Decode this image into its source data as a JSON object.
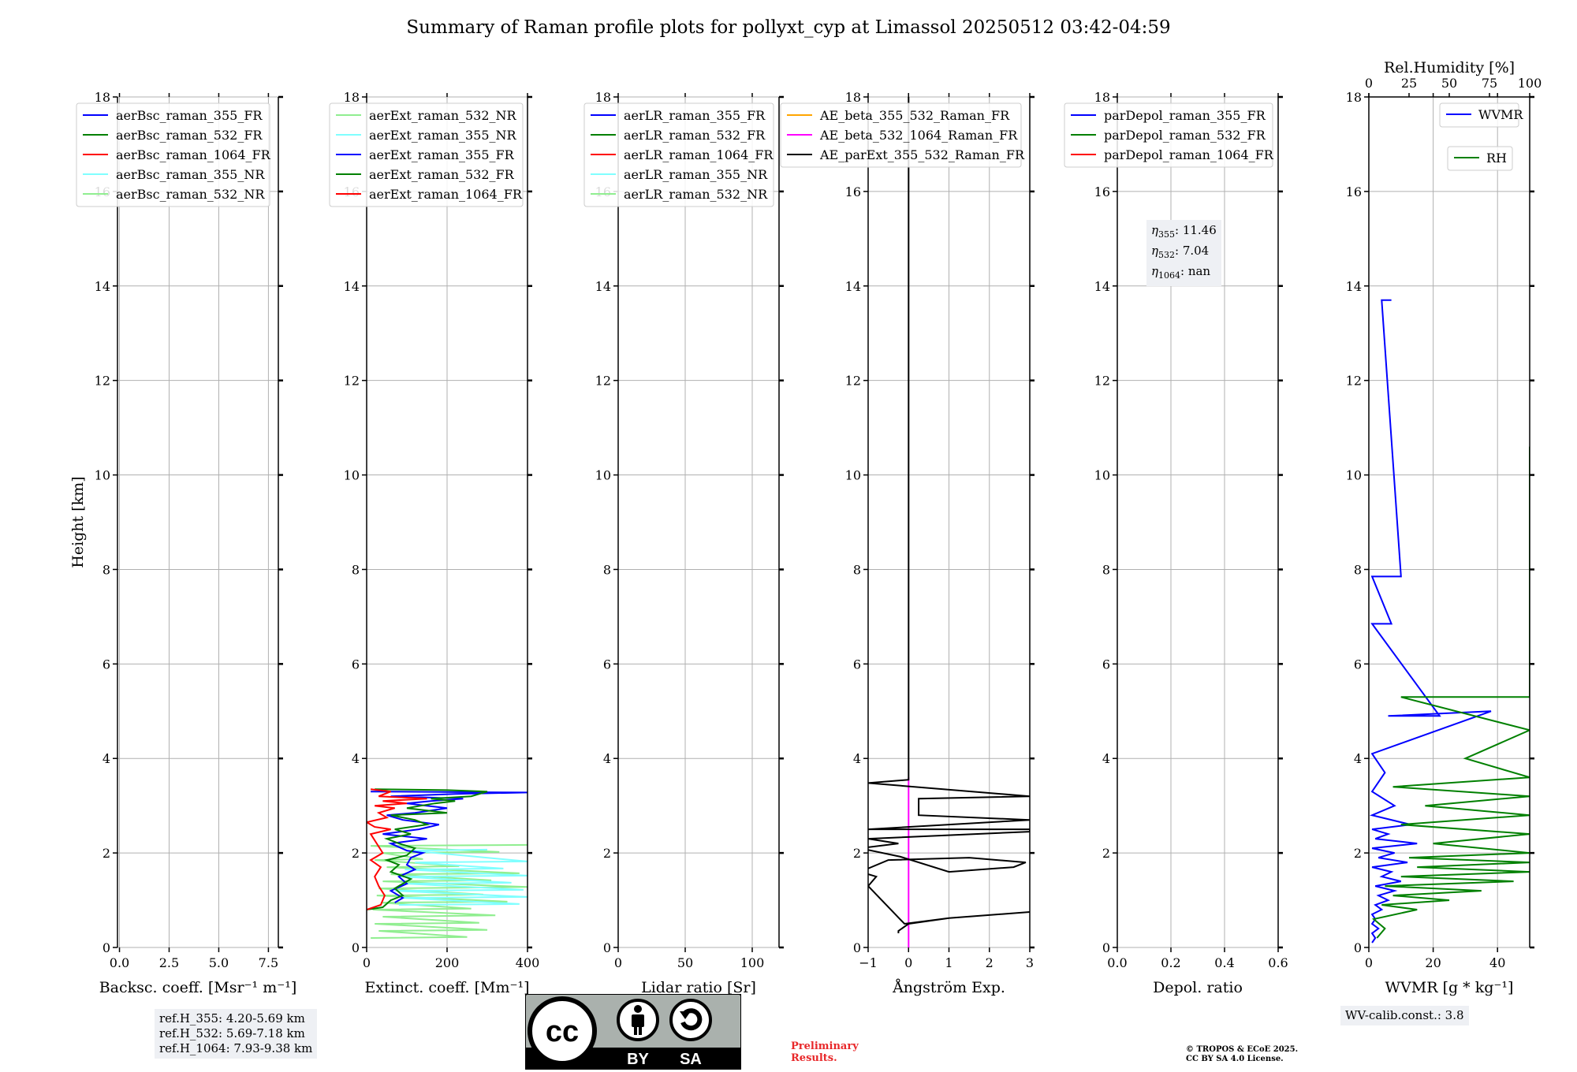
{
  "title": "Summary of Raman profile plots for pollyxt_cyp at Limassol 20250512 03:42-04:59",
  "colors": {
    "blue": "#0000ff",
    "green": "#008000",
    "red": "#ff0000",
    "cyan": "#80ffff",
    "lightgreen": "#90ee90",
    "orange": "#ffa500",
    "magenta": "#ff00ff",
    "black": "#000000",
    "grid": "#b0b0b0",
    "prelim": "#e8282a"
  },
  "chart_data": [
    {
      "type": "line",
      "name": "backscatter",
      "xlabel": "Backsc. coeff. [Msr⁻¹ m⁻¹]",
      "ylabel": "Height [km]",
      "xlim": [
        -0.1,
        8.0
      ],
      "ylim": [
        0,
        18
      ],
      "xticks": [
        0.0,
        2.5,
        5.0,
        7.5
      ],
      "xtick_labels": [
        "0.0",
        "2.5",
        "5.0",
        "7.5"
      ],
      "yticks": [
        0,
        2,
        4,
        6,
        8,
        10,
        12,
        14,
        16,
        18
      ],
      "grid": true,
      "legend": "top-left",
      "series": [
        {
          "name": "aerBsc_raman_355_FR",
          "color": "blue",
          "x": [],
          "y": []
        },
        {
          "name": "aerBsc_raman_532_FR",
          "color": "green",
          "x": [],
          "y": []
        },
        {
          "name": "aerBsc_raman_1064_FR",
          "color": "red",
          "x": [],
          "y": []
        },
        {
          "name": "aerBsc_raman_355_NR",
          "color": "cyan",
          "x": [],
          "y": []
        },
        {
          "name": "aerBsc_raman_532_NR",
          "color": "lightgreen",
          "x": [],
          "y": []
        }
      ]
    },
    {
      "type": "line",
      "name": "extinction",
      "xlabel": "Extinct. coeff. [Mm⁻¹]",
      "xlim": [
        0,
        400
      ],
      "ylim": [
        0,
        18
      ],
      "xticks": [
        0,
        200,
        400
      ],
      "xtick_labels": [
        "0",
        "200",
        "400"
      ],
      "yticks": [
        0,
        2,
        4,
        6,
        8,
        10,
        12,
        14,
        16,
        18
      ],
      "grid": true,
      "legend": "top-left",
      "series": [
        {
          "name": "aerExt_raman_532_NR",
          "color": "lightgreen",
          "x": [
            10,
            250,
            30,
            300,
            20,
            280,
            40,
            320,
            15,
            260,
            35,
            350,
            25,
            290,
            30,
            400,
            40,
            310,
            60,
            380,
            50,
            230,
            20,
            140,
            40,
            330,
            10,
            400
          ],
          "y": [
            0.2,
            0.22,
            0.35,
            0.37,
            0.5,
            0.52,
            0.65,
            0.68,
            0.8,
            0.82,
            0.95,
            0.97,
            1.1,
            1.12,
            1.25,
            1.28,
            1.4,
            1.42,
            1.55,
            1.57,
            1.7,
            1.72,
            1.85,
            1.87,
            2.0,
            2.02,
            2.15,
            2.17
          ]
        },
        {
          "name": "aerExt_raman_355_NR",
          "color": "cyan",
          "x": [
            80,
            380,
            90,
            400,
            70,
            390,
            100,
            360,
            85,
            400,
            95,
            340,
            120,
            400,
            110,
            300
          ],
          "y": [
            0.9,
            0.92,
            1.05,
            1.07,
            1.2,
            1.22,
            1.35,
            1.37,
            1.5,
            1.52,
            1.65,
            1.67,
            1.8,
            1.82,
            2.05,
            2.07
          ]
        },
        {
          "name": "aerExt_raman_355_FR",
          "color": "blue",
          "x": [
            70,
            90,
            60,
            100,
            80,
            120,
            100,
            110,
            140,
            100,
            60,
            150,
            40,
            130,
            180,
            90,
            50,
            120,
            200,
            100,
            160,
            240,
            60,
            220,
            400,
            10
          ],
          "y": [
            0.95,
            1.05,
            1.2,
            1.35,
            1.5,
            1.65,
            1.75,
            1.9,
            2.0,
            2.05,
            2.2,
            2.3,
            2.4,
            2.5,
            2.6,
            2.7,
            2.8,
            2.85,
            2.95,
            3.05,
            3.1,
            3.15,
            3.2,
            3.25,
            3.28,
            3.3
          ]
        },
        {
          "name": "aerExt_raman_532_FR",
          "color": "green",
          "x": [
            0,
            40,
            60,
            90,
            70,
            110,
            60,
            80,
            50,
            100,
            120,
            80,
            50,
            110,
            70,
            150,
            120,
            60,
            200,
            100,
            170,
            220,
            160,
            260,
            300,
            200,
            20
          ],
          "y": [
            0.8,
            0.85,
            1.0,
            1.1,
            1.25,
            1.45,
            1.6,
            1.75,
            1.85,
            1.95,
            2.1,
            2.2,
            2.3,
            2.4,
            2.5,
            2.6,
            2.7,
            2.8,
            2.85,
            2.95,
            3.05,
            3.1,
            3.15,
            3.2,
            3.3,
            3.33,
            3.35
          ]
        },
        {
          "name": "aerExt_raman_1064_FR",
          "color": "red",
          "x": [
            0,
            35,
            45,
            30,
            20,
            35,
            10,
            40,
            25,
            10,
            60,
            20,
            0,
            50,
            30,
            70,
            20,
            100,
            40,
            150,
            30,
            60,
            10
          ],
          "y": [
            0.8,
            0.9,
            1.1,
            1.3,
            1.5,
            1.7,
            1.85,
            2.0,
            2.2,
            2.4,
            2.5,
            2.55,
            2.65,
            2.75,
            2.85,
            2.95,
            3.0,
            3.05,
            3.1,
            3.15,
            3.2,
            3.3,
            3.35
          ]
        }
      ]
    },
    {
      "type": "line",
      "name": "lidar-ratio",
      "xlabel": "Lidar ratio [Sr]",
      "xlim": [
        0,
        120
      ],
      "ylim": [
        0,
        18
      ],
      "xticks": [
        0,
        50,
        100
      ],
      "xtick_labels": [
        "0",
        "50",
        "100"
      ],
      "yticks": [
        0,
        2,
        4,
        6,
        8,
        10,
        12,
        14,
        16,
        18
      ],
      "grid": true,
      "legend": "top-left",
      "series": [
        {
          "name": "aerLR_raman_355_FR",
          "color": "blue",
          "x": [],
          "y": []
        },
        {
          "name": "aerLR_raman_532_FR",
          "color": "green",
          "x": [],
          "y": []
        },
        {
          "name": "aerLR_raman_1064_FR",
          "color": "red",
          "x": [],
          "y": []
        },
        {
          "name": "aerLR_raman_355_NR",
          "color": "cyan",
          "x": [],
          "y": []
        },
        {
          "name": "aerLR_raman_532_NR",
          "color": "lightgreen",
          "x": [],
          "y": []
        }
      ]
    },
    {
      "type": "line",
      "name": "angstrom",
      "xlabel": "Ångström Exp.",
      "xlim": [
        -1,
        3
      ],
      "ylim": [
        0,
        18
      ],
      "xticks": [
        -1,
        0,
        1,
        2,
        3
      ],
      "xtick_labels": [
        "−1",
        "0",
        "1",
        "2",
        "3"
      ],
      "yticks": [
        0,
        2,
        4,
        6,
        8,
        10,
        12,
        14,
        16,
        18
      ],
      "grid": true,
      "legend": "top-left",
      "series": [
        {
          "name": "AE_beta_355_532_Raman_FR",
          "color": "orange",
          "x": [],
          "y": []
        },
        {
          "name": "AE_beta_532_1064_Raman_FR",
          "color": "magenta",
          "x": [
            0,
            0
          ],
          "y": [
            0.0,
            3.6
          ]
        },
        {
          "name": "AE_parExt_355_532_Raman_FR",
          "color": "black",
          "x": [
            -0.25,
            -0.25,
            0.0,
            1.0,
            3.0,
            3.0,
            1.0,
            -0.1,
            -1.0,
            -0.8,
            -1.2,
            -0.5,
            1.5,
            2.9,
            2.6,
            1.0,
            -0.2,
            -1.2,
            -0.25,
            -1.0,
            3.0,
            3.0,
            -1.0,
            3.0,
            0.25,
            0.25,
            3.0,
            -1.0,
            0.0,
            0.0
          ],
          "y": [
            0.3,
            0.35,
            0.5,
            0.62,
            0.75,
            0.75,
            0.62,
            0.5,
            1.3,
            1.5,
            1.6,
            1.85,
            1.9,
            1.8,
            1.7,
            1.6,
            1.92,
            2.1,
            2.2,
            2.3,
            2.45,
            2.5,
            2.5,
            2.7,
            2.8,
            3.15,
            3.2,
            3.48,
            3.55,
            18.0
          ]
        }
      ]
    },
    {
      "type": "line",
      "name": "depolarization",
      "xlabel": "Depol. ratio",
      "xlim": [
        0.0,
        0.6
      ],
      "ylim": [
        0,
        18
      ],
      "xticks": [
        0.0,
        0.2,
        0.4,
        0.6
      ],
      "xtick_labels": [
        "0.0",
        "0.2",
        "0.4",
        "0.6"
      ],
      "yticks": [
        0,
        2,
        4,
        6,
        8,
        10,
        12,
        14,
        16,
        18
      ],
      "grid": true,
      "legend": "top-left",
      "series": [
        {
          "name": "parDepol_raman_355_FR",
          "color": "blue",
          "x": [],
          "y": []
        },
        {
          "name": "parDepol_raman_532_FR",
          "color": "green",
          "x": [],
          "y": []
        },
        {
          "name": "parDepol_raman_1064_FR",
          "color": "red",
          "x": [],
          "y": []
        }
      ]
    },
    {
      "type": "line",
      "name": "water-vapor",
      "xlabel": "WVMR [g * kg⁻¹]",
      "xlabel_top": "Rel.Humidity [%]",
      "xlim": [
        0,
        50
      ],
      "xlim_top": [
        0,
        100
      ],
      "ylim": [
        0,
        18
      ],
      "xticks": [
        0,
        20,
        40
      ],
      "xtick_labels": [
        "0",
        "20",
        "40"
      ],
      "xticks_top": [
        0,
        25,
        50,
        75,
        100
      ],
      "xtick_labels_top": [
        "0",
        "25",
        "50",
        "75",
        "100"
      ],
      "yticks": [
        0,
        2,
        4,
        6,
        8,
        10,
        12,
        14,
        16,
        18
      ],
      "grid": true,
      "legend": "top-right",
      "series": [
        {
          "name": "WVMR",
          "color": "blue",
          "axis": "bottom",
          "x": [
            1,
            2,
            1,
            3,
            1,
            2,
            1,
            4,
            2,
            6,
            3,
            8,
            2,
            10,
            4,
            7,
            1,
            12,
            3,
            8,
            1,
            15,
            2,
            6,
            1,
            13,
            1,
            8,
            1,
            5,
            1,
            38,
            6,
            22,
            1,
            7,
            1,
            10,
            4,
            7
          ],
          "y": [
            0.1,
            0.2,
            0.3,
            0.4,
            0.5,
            0.6,
            0.7,
            0.8,
            0.9,
            1.0,
            1.1,
            1.2,
            1.3,
            1.4,
            1.5,
            1.6,
            1.7,
            1.8,
            1.9,
            2.0,
            2.1,
            2.2,
            2.3,
            2.4,
            2.5,
            2.6,
            2.8,
            3.0,
            3.3,
            3.7,
            4.1,
            5.0,
            4.9,
            4.9,
            6.85,
            6.85,
            7.85,
            7.85,
            13.7,
            13.7
          ]
        },
        {
          "name": "RH",
          "color": "green",
          "axis": "top",
          "x": [
            5,
            10,
            3,
            30,
            8,
            50,
            15,
            70,
            10,
            90,
            20,
            100,
            30,
            100,
            25,
            100,
            40,
            100,
            20,
            100,
            35,
            100,
            15,
            100,
            60,
            100,
            20,
            100,
            100,
            100
          ],
          "y": [
            0.2,
            0.4,
            0.6,
            0.8,
            0.9,
            1.0,
            1.1,
            1.2,
            1.3,
            1.4,
            1.5,
            1.6,
            1.7,
            1.8,
            1.9,
            2.0,
            2.2,
            2.4,
            2.6,
            2.8,
            3.0,
            3.2,
            3.4,
            3.6,
            4.0,
            4.6,
            5.3,
            5.3,
            10.6,
            10.6
          ]
        }
      ]
    }
  ],
  "eta": {
    "line1_sym": "η",
    "line1_sub": "355",
    "line1_val": ": 11.46",
    "line2_sym": "η",
    "line2_sub": "532",
    "line2_val": ": 7.04",
    "line3_sym": "η",
    "line3_sub": "1064",
    "line3_val": ": nan"
  },
  "ref_heights": {
    "h355": "ref.H_355: 4.20-5.69 km",
    "h532": "ref.H_532: 5.69-7.18 km",
    "h1064": "ref.H_1064: 7.93-9.38 km"
  },
  "wv_calib": "WV-calib.const.: 3.8",
  "license": {
    "cc": "cc",
    "by": "BY",
    "sa": "SA"
  },
  "preliminary": {
    "line1": "Preliminary",
    "line2": "Results."
  },
  "copyright": {
    "line1": "© TROPOS & ECoE 2025.",
    "line2": "CC BY SA 4.0 License."
  }
}
